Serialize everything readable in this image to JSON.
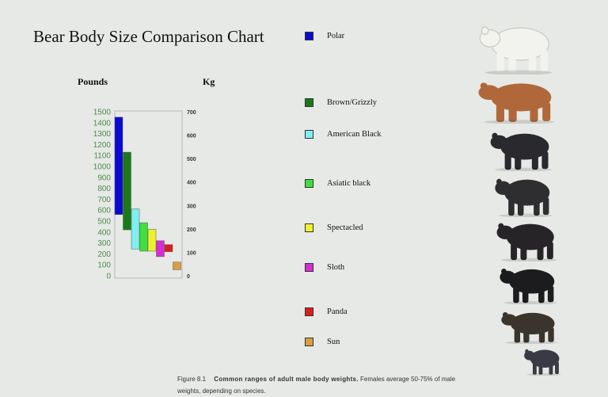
{
  "header": {
    "title": "Bear Body Size Comparison Chart",
    "pounds_label": "Pounds",
    "kg_label": "Kg"
  },
  "chart_data": {
    "type": "bar",
    "title": "Bear Body Size Comparison Chart",
    "ylabel_left": "Pounds",
    "ylabel_right": "Kg",
    "y_ticks_left": [
      "1500",
      "1400",
      "1300",
      "1200",
      "1100",
      "1000",
      "900",
      "800",
      "700",
      "600",
      "500",
      "400",
      "300",
      "200",
      "100",
      "0"
    ],
    "y_ticks_right": [
      "700",
      "600",
      "500",
      "400",
      "300",
      "200",
      "100",
      "0"
    ],
    "ylim_pounds": [
      0,
      1500
    ],
    "ylim_kg": [
      0,
      700
    ],
    "grid": false,
    "series": [
      {
        "name": "Polar",
        "color": "#0a0ad0",
        "range_lb": [
          560,
          1450
        ]
      },
      {
        "name": "Brown/Grizzly",
        "color": "#1a7a1a",
        "range_lb": [
          420,
          1130
        ]
      },
      {
        "name": "American Black",
        "color": "#7fefef",
        "range_lb": [
          245,
          610
        ]
      },
      {
        "name": "Asiatic black",
        "color": "#3ee03e",
        "range_lb": [
          225,
          485
        ]
      },
      {
        "name": "Spectacled",
        "color": "#f0f030",
        "range_lb": [
          225,
          425
        ]
      },
      {
        "name": "Sloth",
        "color": "#d62ed6",
        "range_lb": [
          175,
          320
        ]
      },
      {
        "name": "Panda",
        "color": "#dd1c1c",
        "range_lb": [
          220,
          285
        ]
      },
      {
        "name": "Sun",
        "color": "#d8a040",
        "range_lb": [
          55,
          125
        ]
      }
    ]
  },
  "caption": {
    "figure": "Figure 8.1",
    "bold_text": "Common ranges of adult male body weights.",
    "rest": "Females average 50-75% of male weights, depending on species."
  },
  "bears": [
    {
      "name": "polar-bear-image",
      "color": "#f2f2ee"
    },
    {
      "name": "brown-bear-image",
      "color": "#b0683a"
    },
    {
      "name": "american-black-bear-image",
      "color": "#2a2a2e"
    },
    {
      "name": "asiatic-black-bear-image",
      "color": "#2e2e30"
    },
    {
      "name": "spectacled-bear-image",
      "color": "#262426"
    },
    {
      "name": "sloth-bear-image",
      "color": "#1c1c1e"
    },
    {
      "name": "panda-image",
      "color": "#3a342c"
    },
    {
      "name": "sun-bear-image",
      "color": "#3a3a44"
    }
  ]
}
